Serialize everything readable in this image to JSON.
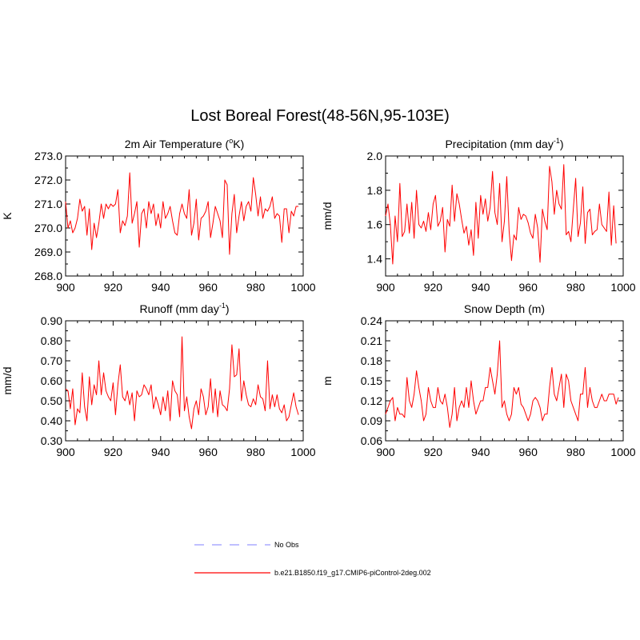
{
  "title": "Lost Boreal Forest(48-56N,95-103E)",
  "colors": {
    "model": "#ff0000",
    "obs": "#9999ff",
    "axis": "#000000"
  },
  "legend": {
    "obs_label": "No Obs",
    "model_label": "b.e21.B1850.f19_g17.CMIP6-piControl-2deg.002"
  },
  "chart_data": [
    {
      "id": "tas",
      "type": "line",
      "title": "2m Air Temperature (°K)",
      "title_main": "2m Air Temperature (",
      "title_sup": "o",
      "title_end": "K)",
      "xlabel": "",
      "ylabel": "K",
      "xlim": [
        900,
        1000
      ],
      "ylim": [
        268.0,
        273.0
      ],
      "xticks": [
        900,
        920,
        940,
        960,
        980,
        1000
      ],
      "yticks": [
        268.0,
        269.0,
        270.0,
        271.0,
        272.0,
        273.0
      ],
      "ytick_decimals": 1,
      "series": [
        {
          "name": "b.e21.B1850.f19_g17.CMIP6-piControl-2deg.002",
          "x0": 900,
          "values": [
            271.1,
            270.0,
            270.3,
            269.8,
            270.0,
            270.4,
            271.2,
            270.7,
            270.9,
            269.7,
            270.8,
            269.1,
            270.2,
            269.6,
            270.2,
            271.0,
            270.4,
            271.0,
            270.8,
            271.0,
            270.9,
            271.0,
            271.6,
            269.8,
            270.3,
            270.1,
            270.5,
            272.3,
            270.2,
            270.6,
            271.1,
            269.2,
            270.6,
            270.8,
            270.0,
            271.1,
            270.6,
            271.0,
            270.1,
            270.6,
            270.0,
            271.1,
            270.4,
            270.6,
            270.9,
            270.3,
            269.8,
            269.7,
            270.6,
            271.0,
            270.6,
            270.4,
            271.6,
            269.7,
            270.2,
            271.2,
            269.5,
            270.4,
            270.5,
            270.7,
            271.1,
            269.6,
            270.2,
            270.9,
            270.6,
            270.3,
            269.6,
            272.0,
            271.8,
            268.9,
            270.6,
            271.4,
            269.8,
            270.5,
            271.1,
            270.3,
            270.9,
            271.1,
            270.7,
            272.1,
            271.4,
            270.5,
            271.3,
            270.4,
            270.8,
            270.7,
            270.9,
            271.3,
            270.4,
            270.6,
            270.5,
            269.4,
            270.8,
            270.8,
            269.8,
            270.7,
            270.5,
            270.9,
            270.9
          ]
        }
      ]
    },
    {
      "id": "pr",
      "type": "line",
      "title": "Precipitation (mm day⁻¹)",
      "title_main": "Precipitation (mm day",
      "title_sup": "-1",
      "title_end": ")",
      "xlabel": "",
      "ylabel": "mm/d",
      "xlim": [
        900,
        1000
      ],
      "ylim": [
        1.3,
        2.0
      ],
      "xticks": [
        900,
        920,
        940,
        960,
        980,
        1000
      ],
      "yticks": [
        1.4,
        1.6,
        1.8,
        2.0
      ],
      "ytick_decimals": 1,
      "series": [
        {
          "name": "b.e21.B1850.f19_g17.CMIP6-piControl-2deg.002",
          "x0": 900,
          "values": [
            1.65,
            1.72,
            1.6,
            1.37,
            1.65,
            1.5,
            1.84,
            1.53,
            1.56,
            1.72,
            1.55,
            1.73,
            1.52,
            1.8,
            1.6,
            1.58,
            1.62,
            1.56,
            1.67,
            1.57,
            1.72,
            1.77,
            1.59,
            1.62,
            1.7,
            1.44,
            1.63,
            1.59,
            1.83,
            1.62,
            1.78,
            1.72,
            1.63,
            1.55,
            1.59,
            1.48,
            1.57,
            1.42,
            1.73,
            1.52,
            1.77,
            1.66,
            1.75,
            1.62,
            1.7,
            1.91,
            1.67,
            1.6,
            1.84,
            1.5,
            1.62,
            1.88,
            1.56,
            1.39,
            1.54,
            1.51,
            1.7,
            1.63,
            1.66,
            1.65,
            1.61,
            1.55,
            1.52,
            1.66,
            1.58,
            1.38,
            1.69,
            1.62,
            1.57,
            1.94,
            1.85,
            1.66,
            1.8,
            1.72,
            1.69,
            1.95,
            1.54,
            1.56,
            1.5,
            1.69,
            1.87,
            1.53,
            1.61,
            1.82,
            1.49,
            1.67,
            1.69,
            1.54,
            1.56,
            1.57,
            1.72,
            1.6,
            1.58,
            1.56,
            1.79,
            1.48,
            1.71,
            1.49
          ]
        }
      ]
    },
    {
      "id": "runoff",
      "type": "line",
      "title": "Runoff (mm day⁻¹)",
      "title_main": "Runoff (mm day",
      "title_sup": "-1",
      "title_end": ")",
      "xlabel": "",
      "ylabel": "mm/d",
      "xlim": [
        900,
        1000
      ],
      "ylim": [
        0.3,
        0.9
      ],
      "xticks": [
        900,
        920,
        940,
        960,
        980,
        1000
      ],
      "yticks": [
        0.3,
        0.4,
        0.5,
        0.6,
        0.7,
        0.8,
        0.9
      ],
      "ytick_decimals": 2,
      "series": [
        {
          "name": "b.e21.B1850.f19_g17.CMIP6-piControl-2deg.002",
          "x0": 900,
          "values": [
            0.56,
            0.55,
            0.46,
            0.56,
            0.38,
            0.46,
            0.44,
            0.64,
            0.47,
            0.4,
            0.62,
            0.48,
            0.58,
            0.53,
            0.7,
            0.53,
            0.64,
            0.55,
            0.52,
            0.5,
            0.59,
            0.43,
            0.58,
            0.68,
            0.52,
            0.5,
            0.55,
            0.48,
            0.54,
            0.4,
            0.55,
            0.52,
            0.53,
            0.58,
            0.56,
            0.53,
            0.58,
            0.46,
            0.52,
            0.48,
            0.43,
            0.52,
            0.45,
            0.55,
            0.4,
            0.6,
            0.55,
            0.53,
            0.42,
            0.82,
            0.45,
            0.52,
            0.42,
            0.36,
            0.46,
            0.5,
            0.43,
            0.56,
            0.52,
            0.43,
            0.47,
            0.61,
            0.44,
            0.56,
            0.42,
            0.55,
            0.48,
            0.47,
            0.45,
            0.56,
            0.78,
            0.62,
            0.63,
            0.76,
            0.5,
            0.6,
            0.53,
            0.48,
            0.47,
            0.51,
            0.48,
            0.58,
            0.52,
            0.51,
            0.45,
            0.7,
            0.46,
            0.53,
            0.47,
            0.53,
            0.46,
            0.44,
            0.48,
            0.4,
            0.42,
            0.48,
            0.54,
            0.47,
            0.43
          ]
        }
      ]
    },
    {
      "id": "snowdepth",
      "type": "line",
      "title": "Snow Depth (m)",
      "title_main": "Snow Depth (m)",
      "title_sup": "",
      "title_end": "",
      "xlabel": "",
      "ylabel": "m",
      "xlim": [
        900,
        1000
      ],
      "ylim": [
        0.06,
        0.24
      ],
      "xticks": [
        900,
        920,
        940,
        960,
        980,
        1000
      ],
      "yticks": [
        0.06,
        0.09,
        0.12,
        0.15,
        0.18,
        0.21,
        0.24
      ],
      "ytick_decimals": 2,
      "series": [
        {
          "name": "b.e21.B1850.f19_g17.CMIP6-piControl-2deg.002",
          "x0": 900,
          "values": [
            0.1,
            0.11,
            0.12,
            0.125,
            0.09,
            0.11,
            0.1,
            0.1,
            0.095,
            0.155,
            0.12,
            0.11,
            0.13,
            0.165,
            0.14,
            0.12,
            0.09,
            0.1,
            0.14,
            0.12,
            0.11,
            0.11,
            0.14,
            0.12,
            0.115,
            0.13,
            0.11,
            0.08,
            0.1,
            0.14,
            0.09,
            0.11,
            0.12,
            0.11,
            0.14,
            0.11,
            0.15,
            0.12,
            0.1,
            0.11,
            0.12,
            0.12,
            0.14,
            0.14,
            0.17,
            0.15,
            0.13,
            0.16,
            0.21,
            0.11,
            0.12,
            0.1,
            0.09,
            0.1,
            0.14,
            0.13,
            0.14,
            0.115,
            0.11,
            0.1,
            0.09,
            0.1,
            0.12,
            0.125,
            0.12,
            0.11,
            0.09,
            0.1,
            0.1,
            0.14,
            0.17,
            0.13,
            0.12,
            0.14,
            0.16,
            0.11,
            0.16,
            0.15,
            0.12,
            0.11,
            0.1,
            0.09,
            0.13,
            0.13,
            0.17,
            0.11,
            0.14,
            0.12,
            0.11,
            0.11,
            0.12,
            0.13,
            0.12,
            0.12,
            0.13,
            0.13,
            0.13,
            0.115,
            0.125
          ]
        }
      ]
    }
  ]
}
